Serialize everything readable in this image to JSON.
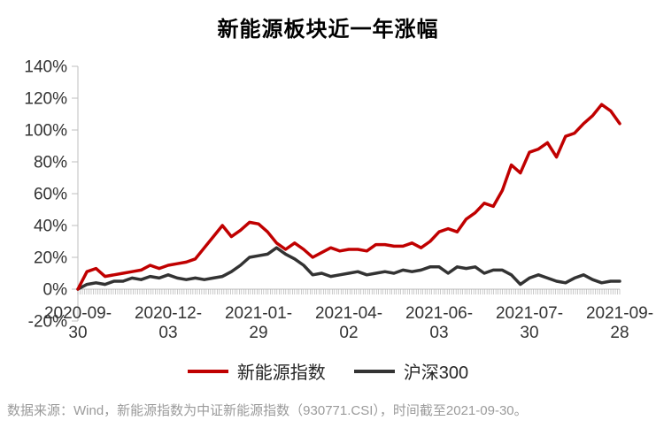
{
  "footer": {
    "source_note": "数据来源：Wind，新能源指数为中证新能源指数（930771.CSI），时间截至2021-09-30。"
  },
  "chart_data": {
    "type": "line",
    "title": "新能源板块近一年涨幅",
    "xlabel": "",
    "ylabel": "",
    "grid": false,
    "legend_position": "bottom",
    "ylim": [
      -20,
      140
    ],
    "y_tick_labels": [
      "140%",
      "120%",
      "100%",
      "80%",
      "60%",
      "40%",
      "20%",
      "0%",
      "-20%"
    ],
    "x_tick_labels": [
      "2020-09-30",
      "2020-12-03",
      "2021-01-29",
      "2021-04-02",
      "2021-06-03",
      "2021-07-30",
      "2021-09-28"
    ],
    "x_label_indices": [
      0,
      10,
      20,
      30,
      40,
      50,
      60
    ],
    "axis_color": "#bfbfbf",
    "tick_color": "#a6a6a6",
    "label_color": "#333333",
    "series": [
      {
        "name": "新能源指数",
        "color": "#c00000",
        "values": [
          0,
          11,
          13,
          8,
          9,
          10,
          11,
          12,
          15,
          13,
          15,
          16,
          17,
          19,
          26,
          33,
          40,
          33,
          37,
          42,
          41,
          36,
          29,
          25,
          29,
          25,
          20,
          23,
          26,
          24,
          25,
          25,
          24,
          28,
          28,
          27,
          27,
          29,
          26,
          30,
          36,
          38,
          36,
          44,
          48,
          54,
          52,
          62,
          78,
          73,
          86,
          88,
          92,
          83,
          96,
          98,
          104,
          109,
          116,
          112,
          104
        ]
      },
      {
        "name": "沪深300",
        "color": "#333333",
        "values": [
          0,
          3,
          4,
          3,
          5,
          5,
          7,
          6,
          8,
          7,
          9,
          7,
          6,
          7,
          6,
          7,
          8,
          11,
          15,
          20,
          21,
          22,
          26,
          22,
          19,
          15,
          9,
          10,
          8,
          9,
          10,
          11,
          9,
          10,
          11,
          10,
          12,
          11,
          12,
          14,
          14,
          10,
          14,
          13,
          14,
          10,
          12,
          12,
          9,
          3,
          7,
          9,
          7,
          5,
          4,
          7,
          9,
          6,
          4,
          5,
          5
        ]
      }
    ]
  }
}
